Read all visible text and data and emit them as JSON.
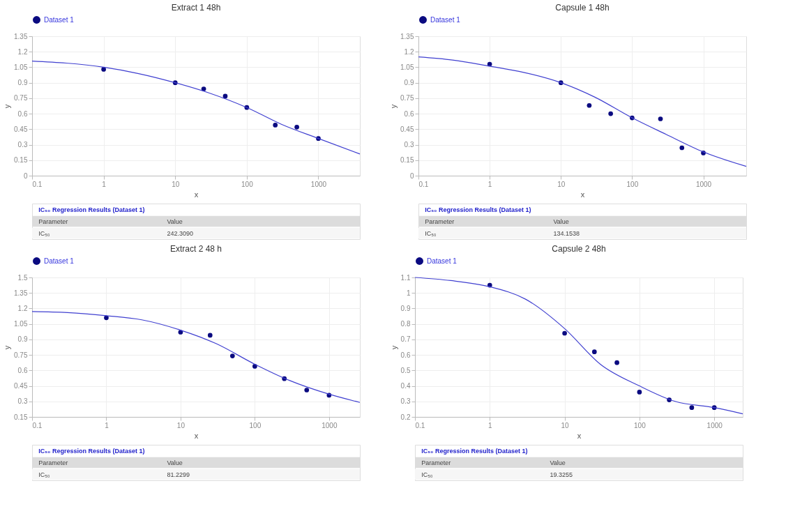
{
  "chart_data": [
    {
      "type": "scatter",
      "title": "Extract 1 48h",
      "xlabel": "x",
      "ylabel": "y",
      "log": "x",
      "grid": true,
      "legend": "top",
      "xlim": [
        0.1,
        3800
      ],
      "xticks": [
        0.1,
        1,
        10,
        100,
        1000
      ],
      "ylim": [
        0,
        1.35
      ],
      "yticks": [
        0,
        0.15,
        0.3,
        0.45,
        0.6,
        0.75,
        0.9,
        1.05,
        1.2,
        1.35
      ],
      "series": [
        {
          "name": "Dataset 1",
          "marker": "circle",
          "color": "#0a0a80",
          "x": [
            1,
            10,
            25,
            50,
            100,
            250,
            500,
            1000
          ],
          "values": [
            1.03,
            0.9,
            0.84,
            0.77,
            0.66,
            0.49,
            0.47,
            0.36
          ]
        },
        {
          "type": "line",
          "marker": "none",
          "line_style": "solid",
          "color": "#4040d0",
          "x": [
            0.1,
            0.3,
            1,
            3,
            10,
            30,
            100,
            300,
            1000,
            3800
          ],
          "values": [
            1.11,
            1.09,
            1.05,
            0.99,
            0.9,
            0.8,
            0.66,
            0.5,
            0.36,
            0.21
          ]
        }
      ],
      "annotations": [
        "IC₅₀ Regression Results (Dataset 1)",
        "Parameter",
        "Value",
        "IC₅₀",
        "242.3090"
      ]
    },
    {
      "type": "scatter",
      "title": "Capsule 1 48h",
      "xlabel": "x",
      "ylabel": "y",
      "log": "x",
      "grid": true,
      "legend": "top",
      "xlim": [
        0.1,
        4000
      ],
      "xticks": [
        0.1,
        1,
        10,
        100,
        1000
      ],
      "ylim": [
        0,
        1.35
      ],
      "yticks": [
        0,
        0.15,
        0.3,
        0.45,
        0.6,
        0.75,
        0.9,
        1.05,
        1.2,
        1.35
      ],
      "series": [
        {
          "name": "Dataset 1",
          "marker": "circle",
          "color": "#0a0a80",
          "x": [
            1,
            10,
            25,
            50,
            100,
            250,
            500,
            1000
          ],
          "values": [
            1.08,
            0.9,
            0.68,
            0.6,
            0.56,
            0.55,
            0.27,
            0.22
          ]
        },
        {
          "type": "line",
          "marker": "none",
          "line_style": "solid",
          "color": "#4040d0",
          "x": [
            0.1,
            0.3,
            1,
            3,
            10,
            30,
            100,
            300,
            1000,
            4000
          ],
          "values": [
            1.15,
            1.12,
            1.06,
            1.0,
            0.9,
            0.76,
            0.56,
            0.4,
            0.23,
            0.09
          ]
        }
      ],
      "annotations": [
        "IC₅₀ Regression Results (Dataset 1)",
        "Parameter",
        "Value",
        "IC₅₀",
        "134.1538"
      ]
    },
    {
      "type": "scatter",
      "title": "Extract 2 48 h",
      "xlabel": "x",
      "ylabel": "y",
      "log": "x",
      "grid": true,
      "legend": "top",
      "xlim": [
        0.1,
        2600
      ],
      "xticks": [
        0.1,
        1,
        10,
        100,
        1000
      ],
      "ylim": [
        0.15,
        1.5
      ],
      "yticks": [
        0.15,
        0.3,
        0.45,
        0.6,
        0.75,
        0.9,
        1.05,
        1.2,
        1.35,
        1.5
      ],
      "series": [
        {
          "name": "Dataset 1",
          "marker": "circle",
          "color": "#0a0a80",
          "x": [
            1,
            10,
            25,
            50,
            100,
            250,
            500,
            1000
          ],
          "values": [
            1.11,
            0.97,
            0.94,
            0.74,
            0.64,
            0.52,
            0.41,
            0.36
          ]
        },
        {
          "type": "line",
          "marker": "none",
          "line_style": "solid",
          "color": "#4040d0",
          "x": [
            0.1,
            0.3,
            1,
            3,
            10,
            30,
            100,
            300,
            1000,
            2600
          ],
          "values": [
            1.17,
            1.16,
            1.13,
            1.09,
            0.99,
            0.86,
            0.66,
            0.5,
            0.37,
            0.29
          ]
        }
      ],
      "annotations": [
        "IC₅₀ Regression Results (Dataset 1)",
        "Parameter",
        "Value",
        "IC₅₀",
        "81.2299"
      ]
    },
    {
      "type": "scatter",
      "title": "Capsule 2 48h",
      "xlabel": "x",
      "ylabel": "y",
      "log": "x",
      "grid": true,
      "legend": "top",
      "xlim": [
        0.1,
        2400
      ],
      "xticks": [
        0.1,
        1,
        10,
        100,
        1000
      ],
      "ylim": [
        0.2,
        1.1
      ],
      "yticks": [
        0.2,
        0.3,
        0.4,
        0.5,
        0.6,
        0.7,
        0.8,
        0.9,
        1,
        1.1
      ],
      "series": [
        {
          "name": "Dataset 1",
          "marker": "circle",
          "color": "#0a0a80",
          "x": [
            1,
            10,
            25,
            50,
            100,
            250,
            500,
            1000
          ],
          "values": [
            1.05,
            0.74,
            0.62,
            0.55,
            0.36,
            0.31,
            0.26,
            0.26
          ]
        },
        {
          "type": "line",
          "marker": "none",
          "line_style": "solid",
          "color": "#4040d0",
          "x": [
            0.1,
            0.3,
            1,
            3,
            10,
            30,
            100,
            300,
            1000,
            2400
          ],
          "values": [
            1.1,
            1.08,
            1.04,
            0.96,
            0.77,
            0.54,
            0.4,
            0.3,
            0.26,
            0.22
          ]
        }
      ],
      "annotations": [
        "IC₅₀ Regression Results (Dataset 1)",
        "Parameter",
        "Value",
        "IC₅₀",
        "19.3255"
      ]
    }
  ]
}
